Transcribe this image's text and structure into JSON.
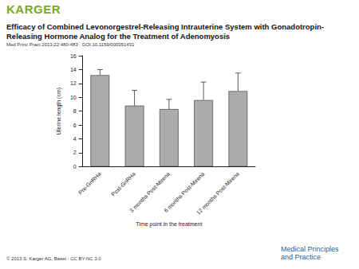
{
  "header": {
    "publisher": "KARGER",
    "title": "Efficacy of Combined Levonorgestrel-Releasing Intrauterine System with Gonadotropin-Releasing Hormone Analog for the Treatment of Adenomyosis",
    "citation": "Med Princ Pract 2013;22:480-483 · DOI:10.1159/000351431"
  },
  "footer": {
    "copyright": "© 2013 S. Karger AG, Basel - CC BY-NC 3.0",
    "journal": "Medical Principles and Practice"
  },
  "chart_data": {
    "type": "bar",
    "x_label": "Time point in the treatment",
    "y_label": "Uterine length (cm)",
    "categories": [
      "Pre-GnRHa",
      "Post-GnRHa",
      "3 months Post-Mirena",
      "6 months Post-Mirena",
      "12 months Post-Mirena"
    ],
    "values": [
      13.2,
      8.8,
      8.3,
      9.6,
      10.9
    ],
    "errors": [
      0.8,
      2.2,
      1.4,
      2.6,
      2.6
    ],
    "color": "#ababab",
    "ylim": [
      0,
      16
    ],
    "yticks": [
      0,
      2,
      4,
      6,
      8,
      10,
      12,
      14,
      16
    ],
    "grid": false
  }
}
